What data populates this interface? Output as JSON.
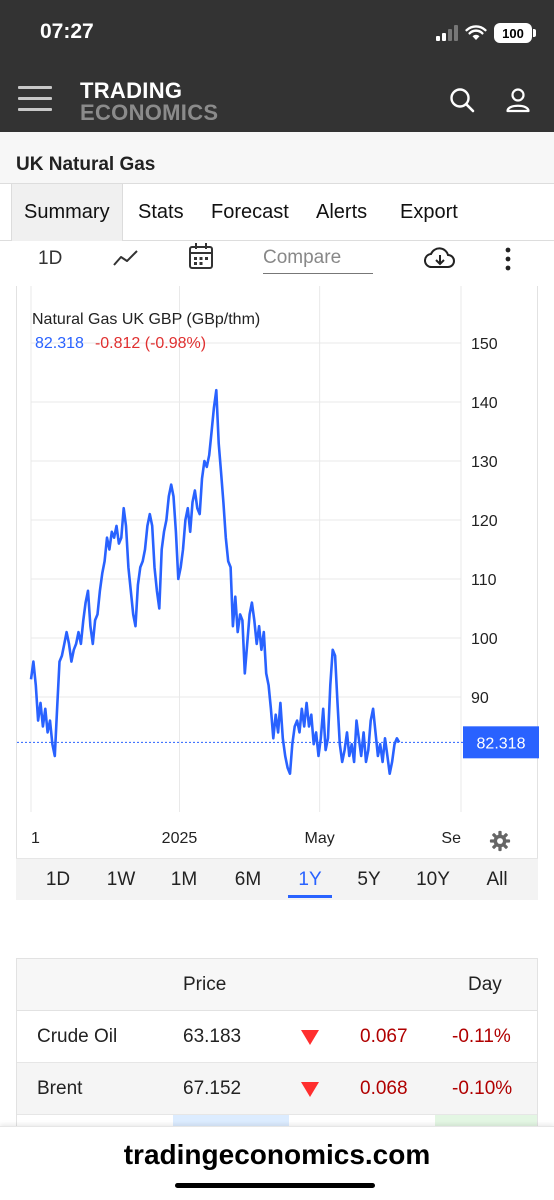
{
  "status_bar": {
    "time": "07:27",
    "battery": "100"
  },
  "header": {
    "logo_line1": "TRADING",
    "logo_line2": "ECONOMICS"
  },
  "page": {
    "title": "UK Natural Gas"
  },
  "tabs": [
    {
      "label": "Summary",
      "active": true
    },
    {
      "label": "Stats"
    },
    {
      "label": "Forecast"
    },
    {
      "label": "Alerts"
    },
    {
      "label": "Export"
    }
  ],
  "toolbar": {
    "interval": "1D",
    "compare_placeholder": "Compare"
  },
  "chart_data": {
    "type": "line",
    "title": "Natural Gas UK GBP (GBp/thm)",
    "last_value": "82.318",
    "change": "-0.812 (-0.98%)",
    "ylim": [
      75,
      152
    ],
    "yticks": [
      90,
      100,
      110,
      120,
      130,
      140,
      150
    ],
    "ytick_labels": [
      "90",
      "100",
      "110",
      "120",
      "130",
      "140",
      "150"
    ],
    "xlim": [
      0,
      362
    ],
    "xticks": [
      {
        "x": 0,
        "label": "1"
      },
      {
        "x": 125,
        "label": "2025"
      },
      {
        "x": 243,
        "label": "May"
      },
      {
        "x": 362,
        "label": "Se"
      }
    ],
    "grid": true,
    "series": [
      {
        "color": "#2962ff",
        "points": [
          [
            0,
            93
          ],
          [
            2,
            96
          ],
          [
            4,
            92
          ],
          [
            6,
            86
          ],
          [
            8,
            89
          ],
          [
            10,
            85
          ],
          [
            12,
            88
          ],
          [
            14,
            84
          ],
          [
            16,
            86
          ],
          [
            18,
            82
          ],
          [
            20,
            80
          ],
          [
            22,
            88
          ],
          [
            24,
            96
          ],
          [
            26,
            97
          ],
          [
            28,
            99
          ],
          [
            30,
            101
          ],
          [
            32,
            99
          ],
          [
            34,
            96
          ],
          [
            36,
            98
          ],
          [
            38,
            99
          ],
          [
            40,
            101
          ],
          [
            42,
            99
          ],
          [
            44,
            103
          ],
          [
            46,
            106
          ],
          [
            48,
            108
          ],
          [
            50,
            102
          ],
          [
            52,
            99
          ],
          [
            54,
            103
          ],
          [
            56,
            104
          ],
          [
            58,
            108
          ],
          [
            60,
            111
          ],
          [
            62,
            113
          ],
          [
            64,
            117
          ],
          [
            66,
            115
          ],
          [
            68,
            118
          ],
          [
            70,
            117
          ],
          [
            72,
            119
          ],
          [
            74,
            116
          ],
          [
            76,
            117
          ],
          [
            78,
            122
          ],
          [
            80,
            119
          ],
          [
            82,
            112
          ],
          [
            84,
            108
          ],
          [
            86,
            104
          ],
          [
            88,
            102
          ],
          [
            90,
            109
          ],
          [
            92,
            112
          ],
          [
            94,
            113
          ],
          [
            96,
            115
          ],
          [
            98,
            119
          ],
          [
            100,
            121
          ],
          [
            102,
            119
          ],
          [
            104,
            112
          ],
          [
            106,
            108
          ],
          [
            108,
            105
          ],
          [
            110,
            115
          ],
          [
            112,
            118
          ],
          [
            114,
            120
          ],
          [
            116,
            124
          ],
          [
            118,
            126
          ],
          [
            120,
            124
          ],
          [
            122,
            118
          ],
          [
            124,
            110
          ],
          [
            126,
            112
          ],
          [
            128,
            115
          ],
          [
            130,
            120
          ],
          [
            132,
            122
          ],
          [
            134,
            118
          ],
          [
            136,
            123
          ],
          [
            138,
            125
          ],
          [
            140,
            122
          ],
          [
            142,
            121
          ],
          [
            144,
            127
          ],
          [
            146,
            130
          ],
          [
            148,
            129
          ],
          [
            150,
            131
          ],
          [
            152,
            135
          ],
          [
            154,
            139
          ],
          [
            156,
            142
          ],
          [
            158,
            133
          ],
          [
            160,
            128
          ],
          [
            162,
            123
          ],
          [
            164,
            117
          ],
          [
            166,
            113
          ],
          [
            168,
            112
          ],
          [
            170,
            102
          ],
          [
            172,
            107
          ],
          [
            174,
            101
          ],
          [
            176,
            104
          ],
          [
            178,
            103
          ],
          [
            180,
            94
          ],
          [
            182,
            99
          ],
          [
            184,
            104
          ],
          [
            186,
            106
          ],
          [
            188,
            103
          ],
          [
            190,
            99
          ],
          [
            192,
            102
          ],
          [
            194,
            98
          ],
          [
            196,
            101
          ],
          [
            198,
            94
          ],
          [
            200,
            92
          ],
          [
            202,
            88
          ],
          [
            204,
            83
          ],
          [
            206,
            87
          ],
          [
            208,
            84
          ],
          [
            210,
            89
          ],
          [
            212,
            83
          ],
          [
            214,
            80
          ],
          [
            216,
            78
          ],
          [
            218,
            77
          ],
          [
            220,
            82
          ],
          [
            222,
            85
          ],
          [
            224,
            86
          ],
          [
            226,
            84
          ],
          [
            228,
            88
          ],
          [
            230,
            85
          ],
          [
            232,
            89
          ],
          [
            234,
            85
          ],
          [
            236,
            87
          ],
          [
            238,
            82
          ],
          [
            240,
            84
          ],
          [
            242,
            80
          ],
          [
            244,
            83
          ],
          [
            246,
            88
          ],
          [
            248,
            81
          ],
          [
            250,
            83
          ],
          [
            252,
            92
          ],
          [
            254,
            98
          ],
          [
            256,
            97
          ],
          [
            258,
            89
          ],
          [
            260,
            82
          ],
          [
            262,
            79
          ],
          [
            264,
            81
          ],
          [
            266,
            84
          ],
          [
            268,
            80
          ],
          [
            270,
            82
          ],
          [
            272,
            79
          ],
          [
            274,
            86
          ],
          [
            276,
            83
          ],
          [
            278,
            80
          ],
          [
            280,
            84
          ],
          [
            282,
            79
          ],
          [
            284,
            81
          ],
          [
            286,
            86
          ],
          [
            288,
            88
          ],
          [
            290,
            84
          ],
          [
            292,
            80
          ],
          [
            294,
            82
          ],
          [
            296,
            79
          ],
          [
            298,
            83
          ],
          [
            300,
            80
          ],
          [
            302,
            77
          ],
          [
            304,
            79
          ],
          [
            306,
            82
          ],
          [
            308,
            83
          ],
          [
            310,
            82.3
          ]
        ]
      }
    ]
  },
  "ranges": [
    {
      "label": "1D"
    },
    {
      "label": "1W"
    },
    {
      "label": "1M"
    },
    {
      "label": "6M"
    },
    {
      "label": "1Y",
      "active": true
    },
    {
      "label": "5Y"
    },
    {
      "label": "10Y"
    },
    {
      "label": "All"
    }
  ],
  "table": {
    "headers": {
      "price": "Price",
      "day": "Day"
    },
    "rows": [
      {
        "name": "Crude Oil",
        "price": "63.183",
        "change": "0.067",
        "pct": "-0.11%"
      },
      {
        "name": "Brent",
        "price": "67.152",
        "change": "0.068",
        "pct": "-0.10%"
      }
    ]
  },
  "footer": {
    "site": "tradingeconomics.com"
  }
}
